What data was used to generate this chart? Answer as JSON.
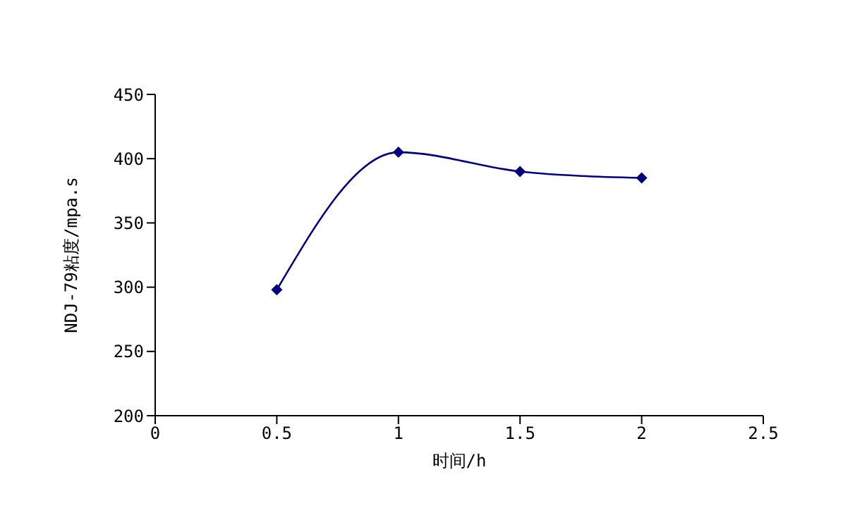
{
  "chart_data": {
    "type": "line",
    "xlabel": "时间/h",
    "ylabel": "NDJ-79粘度/mpa.s",
    "x": [
      0.5,
      1,
      1.5,
      2
    ],
    "series": [
      {
        "color": "#000080",
        "values": [
          298,
          405,
          390,
          385
        ]
      }
    ],
    "xlim": [
      0,
      2.5
    ],
    "xticks": [
      0,
      0.5,
      1,
      1.5,
      2,
      2.5
    ],
    "ylim": [
      200,
      450
    ],
    "yticks": [
      200,
      250,
      300,
      350,
      400,
      450
    ],
    "grid": false,
    "legend": false,
    "marker": "diamond",
    "line_style": "solid"
  }
}
